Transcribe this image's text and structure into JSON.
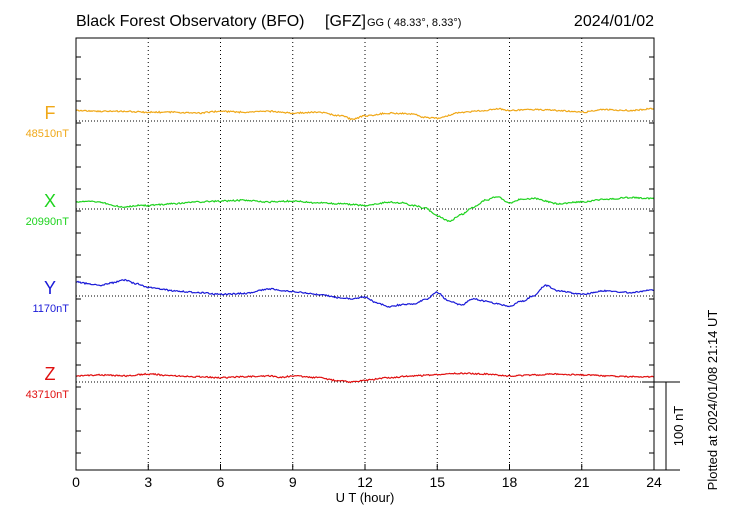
{
  "header": {
    "observatory": "Black Forest Observatory (BFO)",
    "institute": "[GFZ]",
    "coords": "GG ( 48.33°,   8.33°)",
    "date": "2024/01/02"
  },
  "footer_note": "Plotted at 2024/01/08 21:14 UT",
  "chart_data": {
    "type": "line",
    "xlabel": "U T (hour)",
    "xlim": [
      0,
      24
    ],
    "x_ticks": [
      "0",
      "3",
      "6",
      "9",
      "12",
      "15",
      "18",
      "21",
      "24"
    ],
    "scale_bar": {
      "label": "100 nT",
      "value_nT": 100
    },
    "grid": "dotted vertical lines every 3 hours",
    "series": [
      {
        "name": "F",
        "baseline_label": "48510nT",
        "color": "#f0a818",
        "x": [
          0,
          1,
          2,
          3,
          4,
          5,
          6,
          7,
          8,
          9,
          10,
          11,
          11.5,
          12,
          13,
          14,
          14.5,
          15,
          16,
          17,
          17.5,
          18,
          19,
          20,
          21,
          22,
          23,
          24
        ],
        "values": [
          12,
          11,
          11,
          10,
          10,
          9,
          11,
          10,
          11,
          9,
          10,
          6,
          2,
          6,
          9,
          8,
          4,
          3,
          10,
          12,
          14,
          12,
          13,
          12,
          10,
          13,
          12,
          14
        ]
      },
      {
        "name": "X",
        "baseline_label": "20990nT",
        "color": "#1fd31f",
        "x": [
          0,
          0.5,
          1,
          1.5,
          2,
          2.5,
          3,
          3.5,
          4,
          5,
          6,
          7,
          8,
          9,
          10,
          11,
          12,
          12.5,
          13,
          13.5,
          14,
          14.5,
          15,
          15.5,
          16,
          16.5,
          17,
          17.5,
          18,
          18.5,
          19,
          20,
          21,
          22,
          23,
          24
        ],
        "values": [
          8,
          9,
          8,
          4,
          2,
          4,
          4,
          5,
          6,
          8,
          9,
          10,
          8,
          9,
          7,
          6,
          4,
          6,
          8,
          7,
          4,
          1,
          -8,
          -14,
          -6,
          2,
          10,
          14,
          7,
          11,
          12,
          6,
          8,
          11,
          13,
          12
        ]
      },
      {
        "name": "Y",
        "baseline_label": "1170nT",
        "color": "#1a1ad8",
        "x": [
          0,
          0.5,
          1,
          1.5,
          2,
          2.5,
          3,
          3.5,
          4,
          5,
          6,
          7,
          8,
          9,
          10,
          11,
          11.5,
          12,
          12.5,
          13,
          13.5,
          14,
          14.5,
          15,
          15.5,
          16,
          16.5,
          17,
          17.5,
          18,
          18.5,
          19,
          19.5,
          20,
          21,
          22,
          23,
          24
        ],
        "values": [
          16,
          14,
          12,
          15,
          18,
          14,
          10,
          8,
          6,
          4,
          2,
          3,
          8,
          5,
          2,
          -2,
          -3,
          -1,
          -8,
          -12,
          -10,
          -9,
          -4,
          4,
          -6,
          -10,
          -3,
          -6,
          -9,
          -12,
          -6,
          0,
          12,
          6,
          2,
          6,
          4,
          7
        ]
      },
      {
        "name": "Z",
        "baseline_label": "43710nT",
        "color": "#e01010",
        "x": [
          0,
          1,
          2,
          3,
          4,
          5,
          6,
          7,
          8,
          8.5,
          9,
          10,
          11,
          11.5,
          12,
          13,
          14,
          15,
          16,
          17,
          18,
          19,
          20,
          21,
          22,
          23,
          24
        ],
        "values": [
          7,
          8,
          7,
          9,
          7,
          6,
          5,
          6,
          7,
          5,
          7,
          5,
          1,
          0,
          2,
          5,
          7,
          8,
          10,
          9,
          7,
          8,
          9,
          8,
          7,
          6,
          6
        ]
      }
    ]
  }
}
